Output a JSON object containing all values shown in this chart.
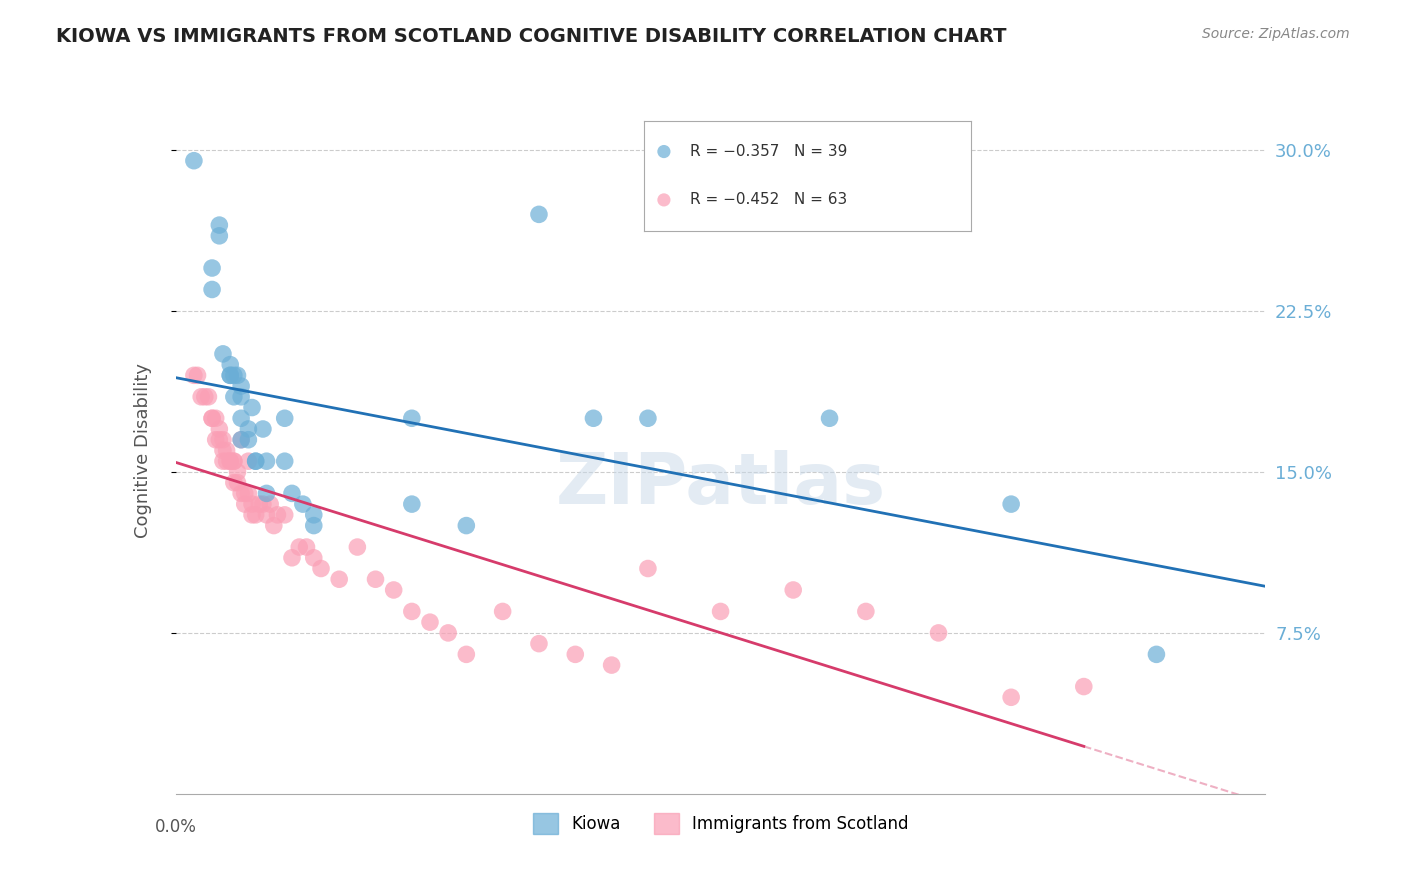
{
  "title": "KIOWA VS IMMIGRANTS FROM SCOTLAND COGNITIVE DISABILITY CORRELATION CHART",
  "source": "Source: ZipAtlas.com",
  "ylabel": "Cognitive Disability",
  "ytick_labels": [
    "30.0%",
    "22.5%",
    "15.0%",
    "7.5%"
  ],
  "ytick_values": [
    0.3,
    0.225,
    0.15,
    0.075
  ],
  "xlim": [
    0.0,
    0.3
  ],
  "ylim": [
    0.0,
    0.32
  ],
  "watermark": "ZIPatlas",
  "legend_entry1": "R = −0.357   N = 39",
  "legend_entry2": "R = −0.452   N = 63",
  "legend_label1": "Kiowa",
  "legend_label2": "Immigrants from Scotland",
  "color_blue": "#6baed6",
  "color_pink": "#fa9fb5",
  "color_trendline_blue": "#2171b5",
  "color_trendline_pink": "#d63b6b",
  "color_axis_right": "#6baed6",
  "kiowa_x": [
    0.005,
    0.01,
    0.01,
    0.012,
    0.012,
    0.013,
    0.015,
    0.015,
    0.015,
    0.016,
    0.016,
    0.017,
    0.018,
    0.018,
    0.018,
    0.018,
    0.02,
    0.02,
    0.021,
    0.022,
    0.022,
    0.024,
    0.025,
    0.025,
    0.03,
    0.03,
    0.032,
    0.035,
    0.038,
    0.038,
    0.065,
    0.065,
    0.08,
    0.1,
    0.115,
    0.13,
    0.18,
    0.23,
    0.27
  ],
  "kiowa_y": [
    0.295,
    0.245,
    0.235,
    0.265,
    0.26,
    0.205,
    0.2,
    0.195,
    0.195,
    0.195,
    0.185,
    0.195,
    0.19,
    0.185,
    0.175,
    0.165,
    0.17,
    0.165,
    0.18,
    0.155,
    0.155,
    0.17,
    0.155,
    0.14,
    0.175,
    0.155,
    0.14,
    0.135,
    0.125,
    0.13,
    0.175,
    0.135,
    0.125,
    0.27,
    0.175,
    0.175,
    0.175,
    0.135,
    0.065
  ],
  "scotland_x": [
    0.005,
    0.006,
    0.007,
    0.008,
    0.009,
    0.01,
    0.01,
    0.011,
    0.011,
    0.012,
    0.012,
    0.013,
    0.013,
    0.013,
    0.014,
    0.014,
    0.015,
    0.015,
    0.016,
    0.016,
    0.016,
    0.017,
    0.017,
    0.018,
    0.018,
    0.019,
    0.019,
    0.02,
    0.02,
    0.021,
    0.021,
    0.022,
    0.023,
    0.024,
    0.025,
    0.026,
    0.027,
    0.028,
    0.03,
    0.032,
    0.034,
    0.036,
    0.038,
    0.04,
    0.045,
    0.05,
    0.055,
    0.06,
    0.065,
    0.07,
    0.075,
    0.08,
    0.09,
    0.1,
    0.11,
    0.12,
    0.13,
    0.15,
    0.17,
    0.19,
    0.21,
    0.23,
    0.25
  ],
  "scotland_y": [
    0.195,
    0.195,
    0.185,
    0.185,
    0.185,
    0.175,
    0.175,
    0.175,
    0.165,
    0.17,
    0.165,
    0.165,
    0.16,
    0.155,
    0.16,
    0.155,
    0.155,
    0.155,
    0.155,
    0.155,
    0.145,
    0.15,
    0.145,
    0.165,
    0.14,
    0.14,
    0.135,
    0.155,
    0.14,
    0.135,
    0.13,
    0.13,
    0.135,
    0.135,
    0.13,
    0.135,
    0.125,
    0.13,
    0.13,
    0.11,
    0.115,
    0.115,
    0.11,
    0.105,
    0.1,
    0.115,
    0.1,
    0.095,
    0.085,
    0.08,
    0.075,
    0.065,
    0.085,
    0.07,
    0.065,
    0.06,
    0.105,
    0.085,
    0.095,
    0.085,
    0.075,
    0.045,
    0.05
  ]
}
